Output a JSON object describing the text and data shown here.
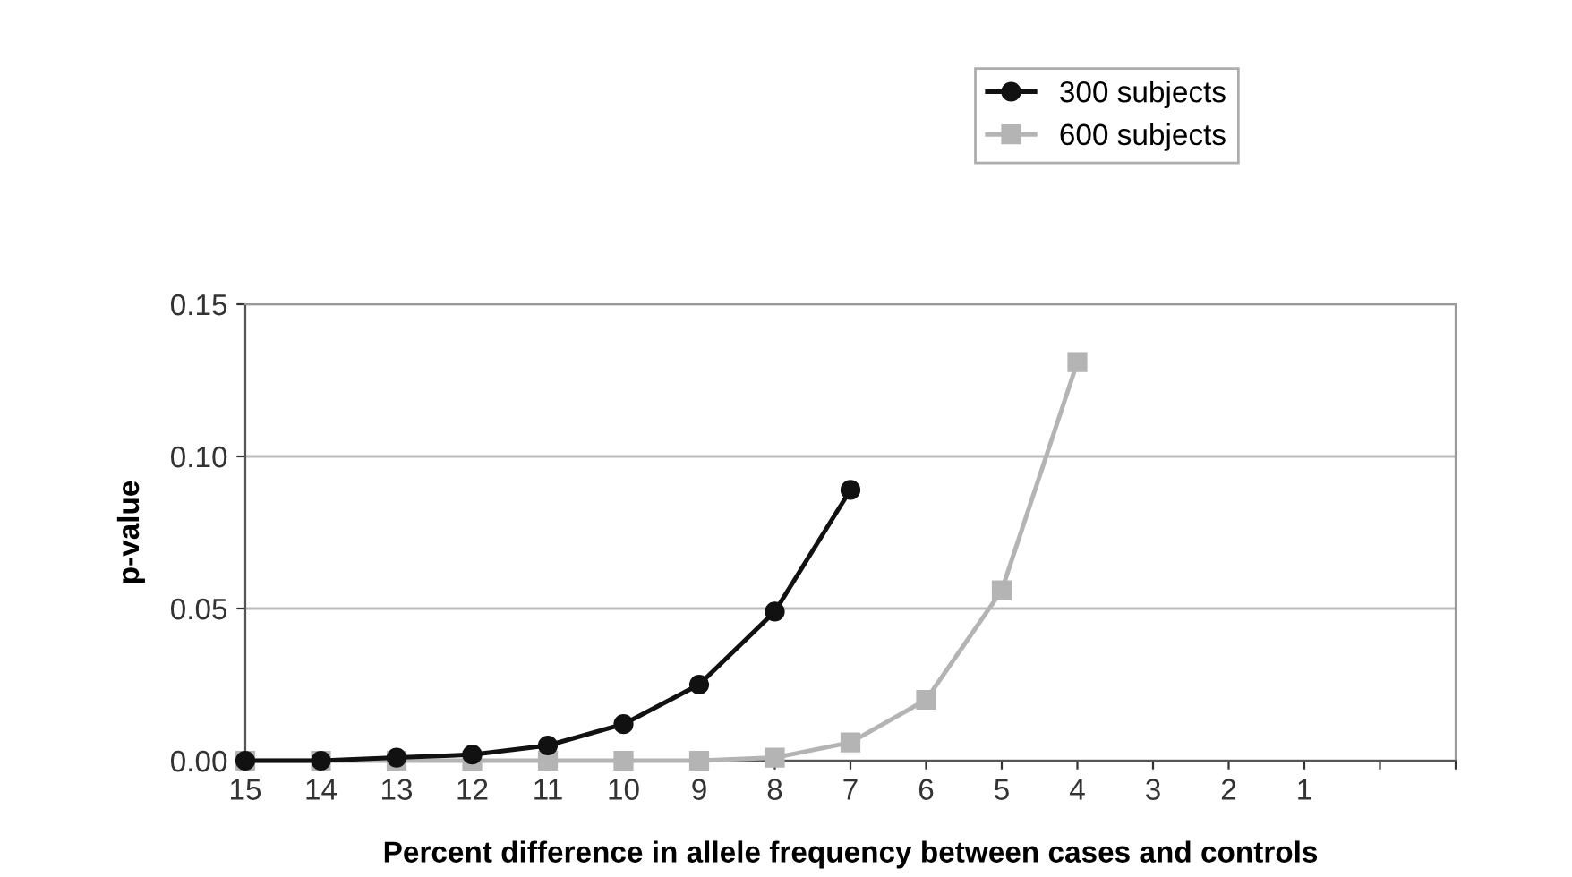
{
  "chart_data": {
    "type": "line",
    "xlabel": "Percent difference in allele frequency between cases and controls",
    "ylabel": "p-value",
    "categories": [
      "15",
      "14",
      "13",
      "12",
      "11",
      "10",
      "9",
      "8",
      "7",
      "6",
      "5",
      "4",
      "3",
      "2",
      "1",
      null,
      null
    ],
    "series": [
      {
        "name": "300 subjects",
        "color": "#111111",
        "marker": "circle",
        "values": [
          0,
          0,
          0.001,
          0.002,
          0.005,
          0.012,
          0.025,
          0.049,
          0.089,
          null,
          null,
          null,
          null,
          null,
          null,
          null,
          null
        ]
      },
      {
        "name": "600 subjects",
        "color": "#b4b4b4",
        "marker": "square",
        "values": [
          0,
          0,
          0,
          0,
          0,
          0,
          0,
          0.001,
          0.006,
          0.02,
          0.056,
          0.131,
          null,
          null,
          null,
          null,
          null
        ]
      }
    ],
    "ylim": [
      0,
      0.15
    ],
    "yticks": [
      {
        "value": 0,
        "label": "0.00"
      },
      {
        "value": 0.05,
        "label": "0.05"
      },
      {
        "value": 0.1,
        "label": "0.10"
      },
      {
        "value": 0.15,
        "label": "0.15"
      }
    ],
    "grid": "y",
    "legend": "top right",
    "line_style": "solid"
  }
}
